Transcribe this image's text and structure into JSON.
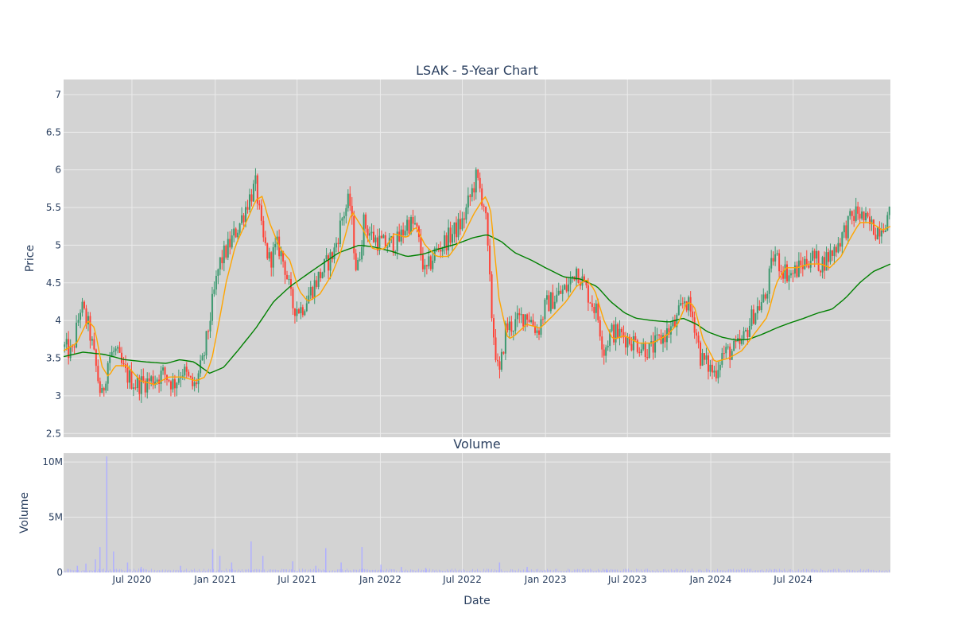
{
  "chart_data": [
    {
      "type": "candlestick",
      "title": "LSAK - 5-Year Chart",
      "ylabel": "Price",
      "xlabel": "",
      "ylim": [
        2.45,
        7.2
      ],
      "y_ticks": [
        "2.5",
        "3",
        "3.5",
        "4",
        "4.5",
        "5",
        "5.5",
        "6",
        "6.5",
        "7"
      ],
      "x_range": [
        "2020-02-01",
        "2025-02-01"
      ],
      "x_ticks": [
        {
          "date": "2020-07-01",
          "label": "Jul 2020"
        },
        {
          "date": "2021-01-01",
          "label": "Jan 2021"
        },
        {
          "date": "2021-07-01",
          "label": "Jul 2021"
        },
        {
          "date": "2022-01-01",
          "label": "Jan 2022"
        },
        {
          "date": "2022-07-01",
          "label": "Jul 2022"
        },
        {
          "date": "2023-01-01",
          "label": "Jan 2023"
        },
        {
          "date": "2023-07-01",
          "label": "Jul 2023"
        },
        {
          "date": "2024-01-01",
          "label": "Jan 2024"
        },
        {
          "date": "2024-07-01",
          "label": "Jul 2024"
        }
      ],
      "grid": true,
      "colors": {
        "up": "#3d9970",
        "down": "#ff4136",
        "ma_short": "#ffa500",
        "ma_long": "#008000",
        "plot_bg": "#d3d3d3",
        "grid": "#ebebeb"
      },
      "price_path": [
        [
          "2020-02-01",
          3.65
        ],
        [
          "2020-02-20",
          3.55
        ],
        [
          "2020-03-10",
          4.2
        ],
        [
          "2020-03-28",
          3.9
        ],
        [
          "2020-04-12",
          3.4
        ],
        [
          "2020-04-25",
          2.95
        ],
        [
          "2020-05-10",
          3.5
        ],
        [
          "2020-05-25",
          3.6
        ],
        [
          "2020-06-15",
          3.3
        ],
        [
          "2020-07-10",
          3.15
        ],
        [
          "2020-08-10",
          3.2
        ],
        [
          "2020-09-10",
          3.3
        ],
        [
          "2020-10-01",
          3.15
        ],
        [
          "2020-10-20",
          3.35
        ],
        [
          "2020-11-15",
          3.1
        ],
        [
          "2020-12-05",
          3.45
        ],
        [
          "2020-12-25",
          4.2
        ],
        [
          "2021-01-10",
          4.75
        ],
        [
          "2021-02-01",
          5.0
        ],
        [
          "2021-02-25",
          5.3
        ],
        [
          "2021-03-15",
          5.6
        ],
        [
          "2021-04-01",
          5.8
        ],
        [
          "2021-04-15",
          5.1
        ],
        [
          "2021-05-01",
          4.8
        ],
        [
          "2021-05-20",
          5.0
        ],
        [
          "2021-06-05",
          4.7
        ],
        [
          "2021-06-20",
          4.2
        ],
        [
          "2021-07-10",
          4.15
        ],
        [
          "2021-08-01",
          4.4
        ],
        [
          "2021-08-25",
          4.65
        ],
        [
          "2021-09-20",
          4.9
        ],
        [
          "2021-10-10",
          5.4
        ],
        [
          "2021-10-25",
          5.6
        ],
        [
          "2021-11-10",
          4.6
        ],
        [
          "2021-11-25",
          5.3
        ],
        [
          "2021-12-15",
          5.1
        ],
        [
          "2022-01-10",
          5.0
        ],
        [
          "2022-02-10",
          5.05
        ],
        [
          "2022-03-01",
          5.3
        ],
        [
          "2022-03-20",
          5.25
        ],
        [
          "2022-04-10",
          4.6
        ],
        [
          "2022-05-01",
          4.9
        ],
        [
          "2022-06-01",
          5.1
        ],
        [
          "2022-07-01",
          5.3
        ],
        [
          "2022-08-01",
          5.9
        ],
        [
          "2022-08-20",
          5.5
        ],
        [
          "2022-09-05",
          4.0
        ],
        [
          "2022-09-20",
          3.2
        ],
        [
          "2022-10-05",
          3.9
        ],
        [
          "2022-10-25",
          3.95
        ],
        [
          "2022-11-20",
          4.1
        ],
        [
          "2022-12-15",
          3.85
        ],
        [
          "2023-01-01",
          4.2
        ],
        [
          "2023-02-01",
          4.35
        ],
        [
          "2023-02-20",
          4.45
        ],
        [
          "2023-03-10",
          4.7
        ],
        [
          "2023-04-01",
          4.4
        ],
        [
          "2023-04-25",
          4.1
        ],
        [
          "2023-05-10",
          3.6
        ],
        [
          "2023-05-25",
          3.85
        ],
        [
          "2023-06-20",
          3.8
        ],
        [
          "2023-07-20",
          3.7
        ],
        [
          "2023-08-20",
          3.6
        ],
        [
          "2023-09-20",
          3.8
        ],
        [
          "2023-10-15",
          3.95
        ],
        [
          "2023-11-05",
          4.3
        ],
        [
          "2023-11-25",
          4.0
        ],
        [
          "2023-12-10",
          3.5
        ],
        [
          "2024-01-10",
          3.3
        ],
        [
          "2024-01-25",
          3.55
        ],
        [
          "2024-02-20",
          3.6
        ],
        [
          "2024-03-10",
          3.7
        ],
        [
          "2024-04-05",
          4.1
        ],
        [
          "2024-05-01",
          4.3
        ],
        [
          "2024-05-20",
          4.9
        ],
        [
          "2024-06-05",
          4.7
        ],
        [
          "2024-06-25",
          4.6
        ],
        [
          "2024-07-15",
          4.7
        ],
        [
          "2024-08-10",
          4.85
        ],
        [
          "2024-09-01",
          4.75
        ],
        [
          "2024-09-25",
          4.9
        ],
        [
          "2024-10-15",
          5.1
        ],
        [
          "2024-11-01",
          5.3
        ],
        [
          "2024-11-20",
          5.45
        ],
        [
          "2024-12-10",
          5.3
        ],
        [
          "2025-01-01",
          5.2
        ],
        [
          "2025-02-01",
          5.4
        ]
      ],
      "ma_short_path": [
        [
          "2020-02-01",
          3.6
        ],
        [
          "2020-03-01",
          3.7
        ],
        [
          "2020-03-25",
          4.0
        ],
        [
          "2020-04-10",
          3.9
        ],
        [
          "2020-04-25",
          3.4
        ],
        [
          "2020-05-10",
          3.25
        ],
        [
          "2020-05-25",
          3.4
        ],
        [
          "2020-06-20",
          3.4
        ],
        [
          "2020-07-20",
          3.2
        ],
        [
          "2020-08-20",
          3.15
        ],
        [
          "2020-09-20",
          3.25
        ],
        [
          "2020-10-20",
          3.25
        ],
        [
          "2020-11-20",
          3.2
        ],
        [
          "2020-12-10",
          3.25
        ],
        [
          "2020-12-25",
          3.5
        ],
        [
          "2021-01-10",
          4.0
        ],
        [
          "2021-01-25",
          4.5
        ],
        [
          "2021-02-15",
          5.0
        ],
        [
          "2021-03-10",
          5.3
        ],
        [
          "2021-04-01",
          5.6
        ],
        [
          "2021-04-15",
          5.65
        ],
        [
          "2021-05-01",
          5.3
        ],
        [
          "2021-05-25",
          4.95
        ],
        [
          "2021-06-15",
          4.8
        ],
        [
          "2021-07-05",
          4.4
        ],
        [
          "2021-07-25",
          4.25
        ],
        [
          "2021-08-20",
          4.35
        ],
        [
          "2021-09-15",
          4.6
        ],
        [
          "2021-10-05",
          4.9
        ],
        [
          "2021-10-30",
          5.45
        ],
        [
          "2021-11-20",
          5.25
        ],
        [
          "2021-12-15",
          4.95
        ],
        [
          "2022-01-10",
          4.95
        ],
        [
          "2022-02-01",
          5.15
        ],
        [
          "2022-03-01",
          5.1
        ],
        [
          "2022-03-20",
          5.25
        ],
        [
          "2022-04-10",
          5.0
        ],
        [
          "2022-05-05",
          4.85
        ],
        [
          "2022-06-01",
          4.85
        ],
        [
          "2022-07-01",
          5.1
        ],
        [
          "2022-07-25",
          5.4
        ],
        [
          "2022-08-20",
          5.65
        ],
        [
          "2022-09-01",
          5.5
        ],
        [
          "2022-09-20",
          4.3
        ],
        [
          "2022-10-10",
          3.75
        ],
        [
          "2022-10-25",
          3.8
        ],
        [
          "2022-11-20",
          3.95
        ],
        [
          "2022-12-20",
          3.9
        ],
        [
          "2023-01-15",
          4.05
        ],
        [
          "2023-02-15",
          4.25
        ],
        [
          "2023-03-10",
          4.45
        ],
        [
          "2023-04-01",
          4.55
        ],
        [
          "2023-04-20",
          4.4
        ],
        [
          "2023-05-10",
          4.0
        ],
        [
          "2023-05-30",
          3.75
        ],
        [
          "2023-06-25",
          3.8
        ],
        [
          "2023-07-25",
          3.7
        ],
        [
          "2023-08-25",
          3.7
        ],
        [
          "2023-09-25",
          3.8
        ],
        [
          "2023-10-20",
          3.95
        ],
        [
          "2023-11-10",
          4.25
        ],
        [
          "2023-11-25",
          4.2
        ],
        [
          "2023-12-15",
          3.75
        ],
        [
          "2024-01-10",
          3.45
        ],
        [
          "2024-02-10",
          3.5
        ],
        [
          "2024-03-10",
          3.6
        ],
        [
          "2024-04-10",
          3.85
        ],
        [
          "2024-05-05",
          4.05
        ],
        [
          "2024-05-25",
          4.5
        ],
        [
          "2024-06-15",
          4.7
        ],
        [
          "2024-07-10",
          4.7
        ],
        [
          "2024-08-05",
          4.75
        ],
        [
          "2024-09-01",
          4.75
        ],
        [
          "2024-09-20",
          4.7
        ],
        [
          "2024-10-15",
          4.85
        ],
        [
          "2024-11-05",
          5.1
        ],
        [
          "2024-11-25",
          5.3
        ],
        [
          "2024-12-20",
          5.3
        ],
        [
          "2025-01-15",
          5.2
        ],
        [
          "2025-02-01",
          5.25
        ]
      ],
      "ma_long_path": [
        [
          "2020-02-01",
          3.52
        ],
        [
          "2020-03-15",
          3.58
        ],
        [
          "2020-05-01",
          3.55
        ],
        [
          "2020-06-15",
          3.48
        ],
        [
          "2020-08-01",
          3.45
        ],
        [
          "2020-09-15",
          3.43
        ],
        [
          "2020-10-15",
          3.48
        ],
        [
          "2020-11-15",
          3.45
        ],
        [
          "2020-12-20",
          3.3
        ],
        [
          "2021-01-20",
          3.38
        ],
        [
          "2021-02-20",
          3.6
        ],
        [
          "2021-04-01",
          3.9
        ],
        [
          "2021-05-10",
          4.25
        ],
        [
          "2021-06-15",
          4.45
        ],
        [
          "2021-07-20",
          4.6
        ],
        [
          "2021-08-25",
          4.75
        ],
        [
          "2021-10-01",
          4.9
        ],
        [
          "2021-11-15",
          5.0
        ],
        [
          "2021-12-15",
          4.98
        ],
        [
          "2022-01-25",
          4.92
        ],
        [
          "2022-03-01",
          4.85
        ],
        [
          "2022-04-05",
          4.88
        ],
        [
          "2022-05-10",
          4.95
        ],
        [
          "2022-06-20",
          5.02
        ],
        [
          "2022-07-25",
          5.1
        ],
        [
          "2022-08-25",
          5.14
        ],
        [
          "2022-09-25",
          5.05
        ],
        [
          "2022-10-25",
          4.9
        ],
        [
          "2022-12-01",
          4.8
        ],
        [
          "2023-01-01",
          4.7
        ],
        [
          "2023-02-10",
          4.58
        ],
        [
          "2023-03-20",
          4.55
        ],
        [
          "2023-04-25",
          4.45
        ],
        [
          "2023-05-25",
          4.25
        ],
        [
          "2023-06-25",
          4.1
        ],
        [
          "2023-07-20",
          4.03
        ],
        [
          "2023-08-25",
          4.0
        ],
        [
          "2023-10-01",
          3.98
        ],
        [
          "2023-11-01",
          4.03
        ],
        [
          "2023-12-01",
          3.95
        ],
        [
          "2023-12-25",
          3.85
        ],
        [
          "2024-01-25",
          3.78
        ],
        [
          "2024-02-25",
          3.74
        ],
        [
          "2024-03-25",
          3.75
        ],
        [
          "2024-04-25",
          3.82
        ],
        [
          "2024-05-25",
          3.9
        ],
        [
          "2024-06-25",
          3.97
        ],
        [
          "2024-07-25",
          4.03
        ],
        [
          "2024-08-25",
          4.1
        ],
        [
          "2024-09-25",
          4.15
        ],
        [
          "2024-10-25",
          4.3
        ],
        [
          "2024-11-25",
          4.5
        ],
        [
          "2024-12-25",
          4.65
        ],
        [
          "2025-02-01",
          4.75
        ]
      ]
    },
    {
      "type": "bar",
      "title": "Volume",
      "ylabel": "Volume",
      "xlabel": "Date",
      "ylim": [
        0,
        10800000
      ],
      "y_ticks": [
        {
          "value": 0,
          "label": "0"
        },
        {
          "value": 5000000,
          "label": "5M"
        },
        {
          "value": 10000000,
          "label": "10M"
        }
      ],
      "color": "#b0b0ff",
      "spikes": [
        [
          "2020-03-01",
          600000
        ],
        [
          "2020-03-20",
          800000
        ],
        [
          "2020-04-10",
          1200000
        ],
        [
          "2020-04-20",
          2300000
        ],
        [
          "2020-05-05",
          10500000
        ],
        [
          "2020-05-20",
          1900000
        ],
        [
          "2020-06-20",
          900000
        ],
        [
          "2020-07-20",
          500000
        ],
        [
          "2020-10-15",
          600000
        ],
        [
          "2020-12-25",
          2100000
        ],
        [
          "2021-01-10",
          1500000
        ],
        [
          "2021-02-05",
          900000
        ],
        [
          "2021-03-20",
          2800000
        ],
        [
          "2021-04-15",
          1500000
        ],
        [
          "2021-06-20",
          1000000
        ],
        [
          "2021-08-10",
          600000
        ],
        [
          "2021-09-01",
          2200000
        ],
        [
          "2021-10-05",
          900000
        ],
        [
          "2021-11-20",
          2300000
        ],
        [
          "2022-01-01",
          700000
        ],
        [
          "2022-02-15",
          500000
        ],
        [
          "2022-04-10",
          400000
        ],
        [
          "2022-09-20",
          900000
        ],
        [
          "2022-11-20",
          500000
        ],
        [
          "2023-05-15",
          300000
        ],
        [
          "2024-05-20",
          300000
        ]
      ]
    }
  ]
}
